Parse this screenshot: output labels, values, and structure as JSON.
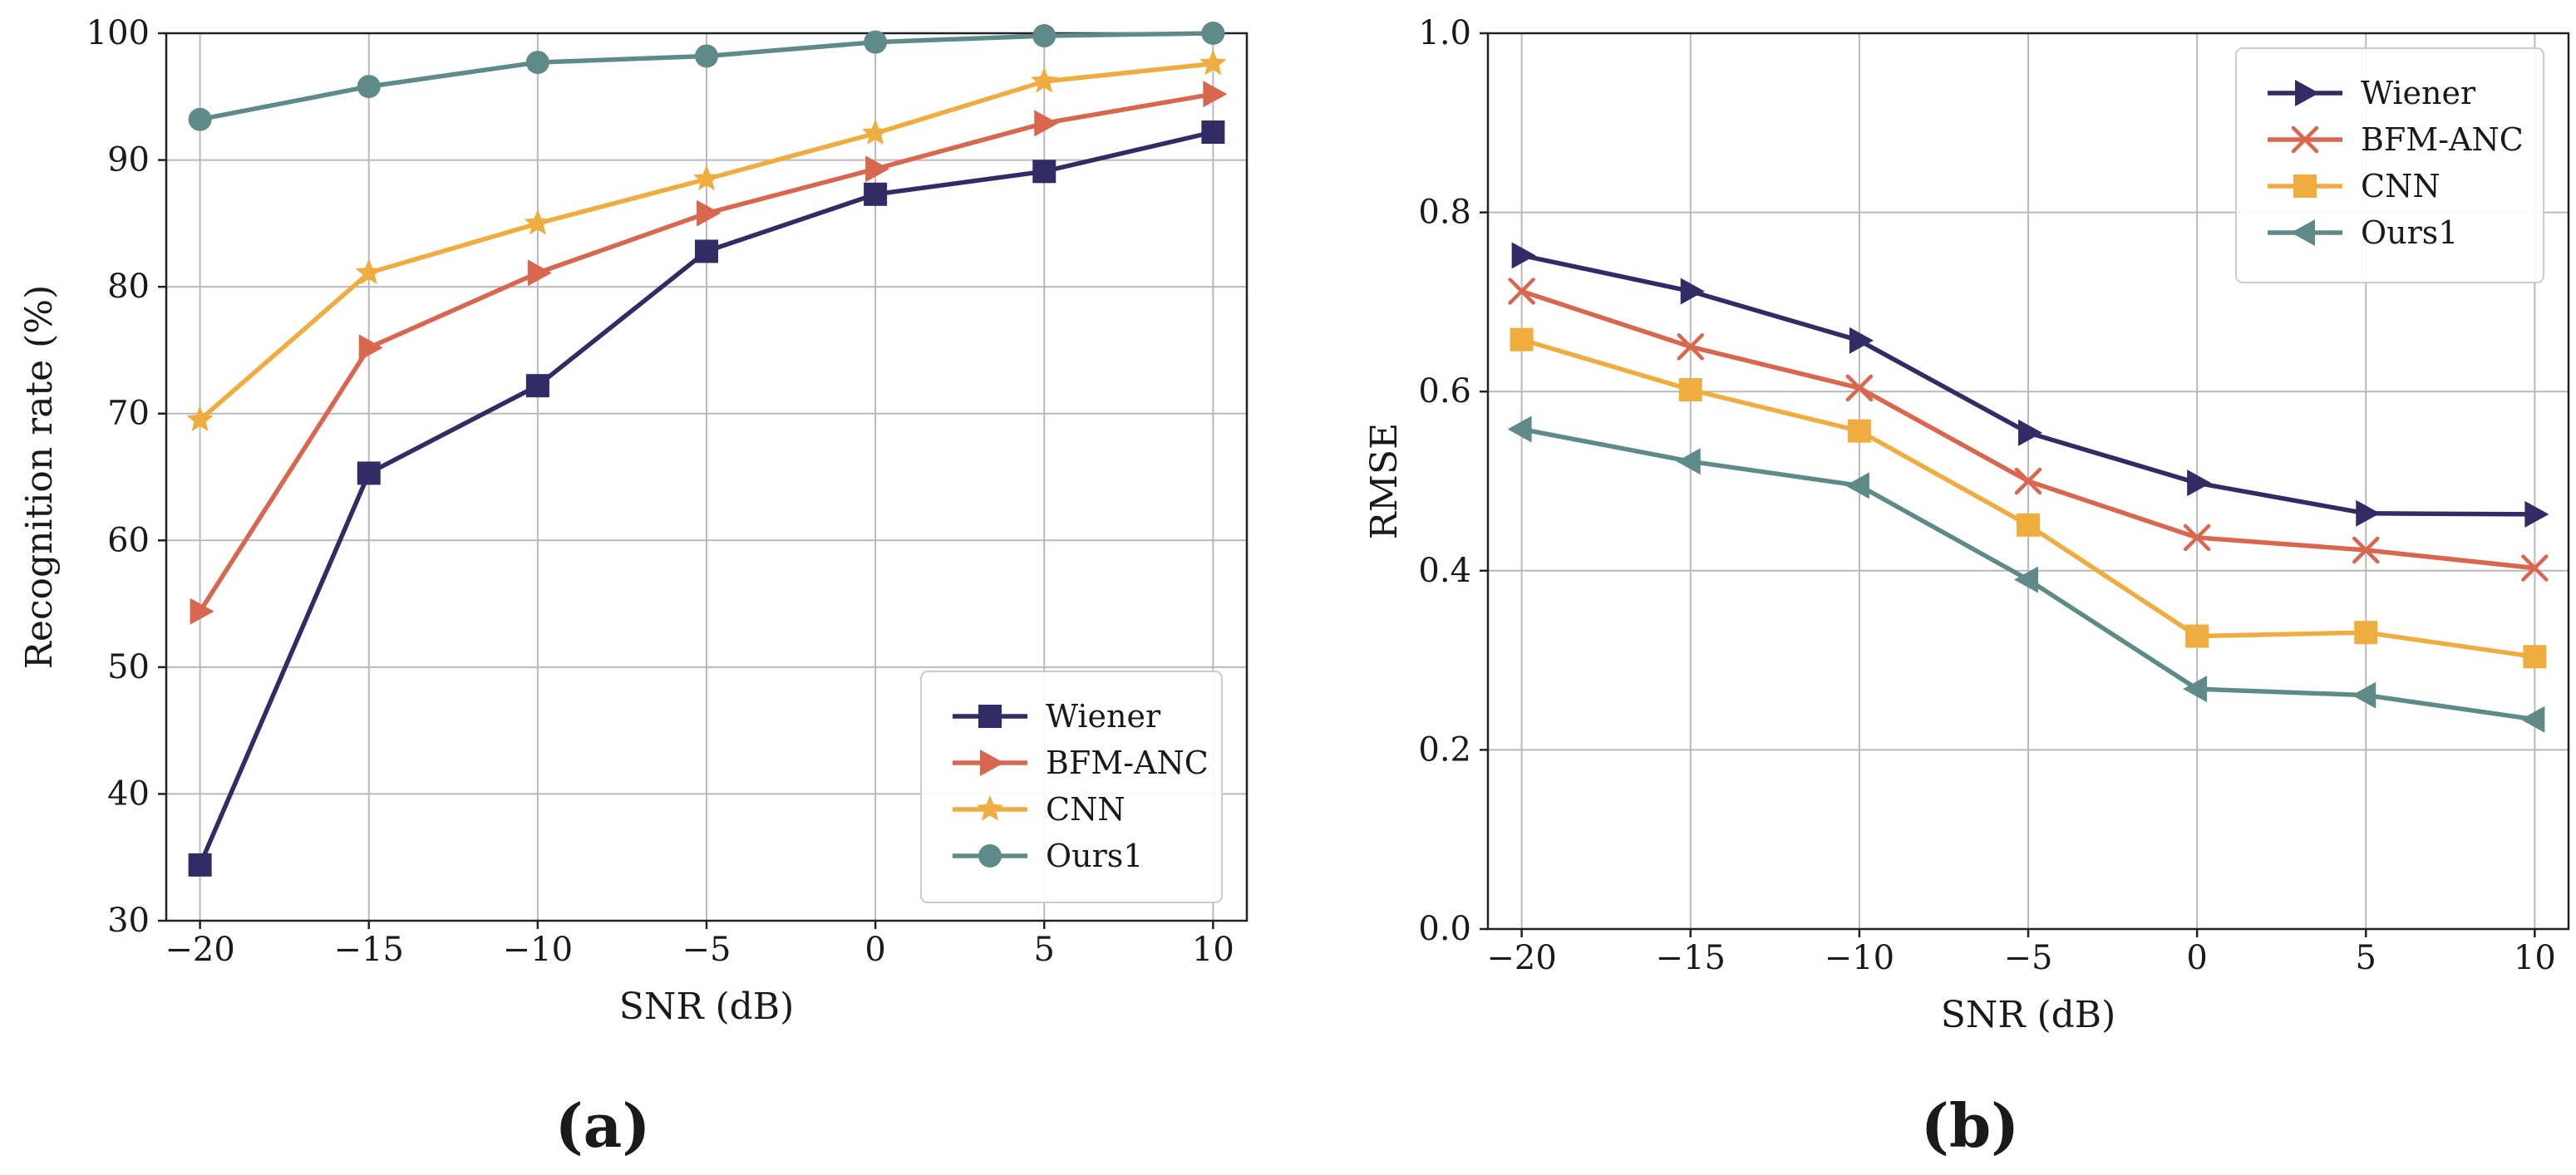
{
  "chart_data": [
    {
      "type": "line",
      "panel_label": "(a)",
      "xlabel": "SNR (dB)",
      "ylabel": "Recognition rate (%)",
      "x": [
        -20,
        -15,
        -10,
        -5,
        0,
        5,
        10
      ],
      "x_tick_labels": [
        "−20",
        "−15",
        "−10",
        "−5",
        "0",
        "5",
        "10"
      ],
      "xlim": [
        -21,
        11
      ],
      "ylim": [
        30,
        100
      ],
      "y_ticks": [
        30,
        40,
        50,
        60,
        70,
        80,
        90,
        100
      ],
      "grid": true,
      "legend_position": "bottom-right",
      "series": [
        {
          "name": "Wiener",
          "color": "#312b66",
          "marker": "square",
          "values": [
            34.4,
            65.3,
            72.2,
            82.8,
            87.3,
            89.1,
            92.2
          ]
        },
        {
          "name": "BFM-ANC",
          "color": "#d9664e",
          "marker": "triangle-right",
          "values": [
            54.4,
            75.2,
            81.1,
            85.8,
            89.3,
            92.9,
            95.2
          ]
        },
        {
          "name": "CNN",
          "color": "#efac3f",
          "marker": "star",
          "values": [
            69.5,
            81.1,
            85.0,
            88.5,
            92.1,
            96.2,
            97.6
          ]
        },
        {
          "name": "Ours1",
          "color": "#5e8a88",
          "marker": "circle",
          "values": [
            93.2,
            95.8,
            97.7,
            98.2,
            99.3,
            99.8,
            100.0
          ]
        }
      ]
    },
    {
      "type": "line",
      "panel_label": "(b)",
      "xlabel": "SNR (dB)",
      "ylabel": "RMSE",
      "x": [
        -20,
        -15,
        -10,
        -5,
        0,
        5,
        10
      ],
      "x_tick_labels": [
        "−20",
        "−15",
        "−10",
        "−5",
        "0",
        "5",
        "10"
      ],
      "xlim": [
        -21,
        11
      ],
      "ylim": [
        0.0,
        1.0
      ],
      "y_ticks": [
        0.0,
        0.2,
        0.4,
        0.6,
        0.8,
        1.0
      ],
      "y_tick_labels": [
        "0.0",
        "0.2",
        "0.4",
        "0.6",
        "0.8",
        "1.0"
      ],
      "grid": true,
      "legend_position": "top-right",
      "series": [
        {
          "name": "Wiener",
          "color": "#312b66",
          "marker": "triangle-right",
          "values": [
            0.752,
            0.712,
            0.657,
            0.554,
            0.498,
            0.464,
            0.463
          ]
        },
        {
          "name": "BFM-ANC",
          "color": "#d9664e",
          "marker": "x",
          "values": [
            0.712,
            0.65,
            0.604,
            0.5,
            0.437,
            0.423,
            0.403
          ]
        },
        {
          "name": "CNN",
          "color": "#efac3f",
          "marker": "square",
          "values": [
            0.658,
            0.602,
            0.556,
            0.451,
            0.327,
            0.331,
            0.304
          ]
        },
        {
          "name": "Ours1",
          "color": "#5e8a88",
          "marker": "triangle-left",
          "values": [
            0.558,
            0.522,
            0.495,
            0.39,
            0.268,
            0.261,
            0.234
          ]
        }
      ]
    }
  ]
}
